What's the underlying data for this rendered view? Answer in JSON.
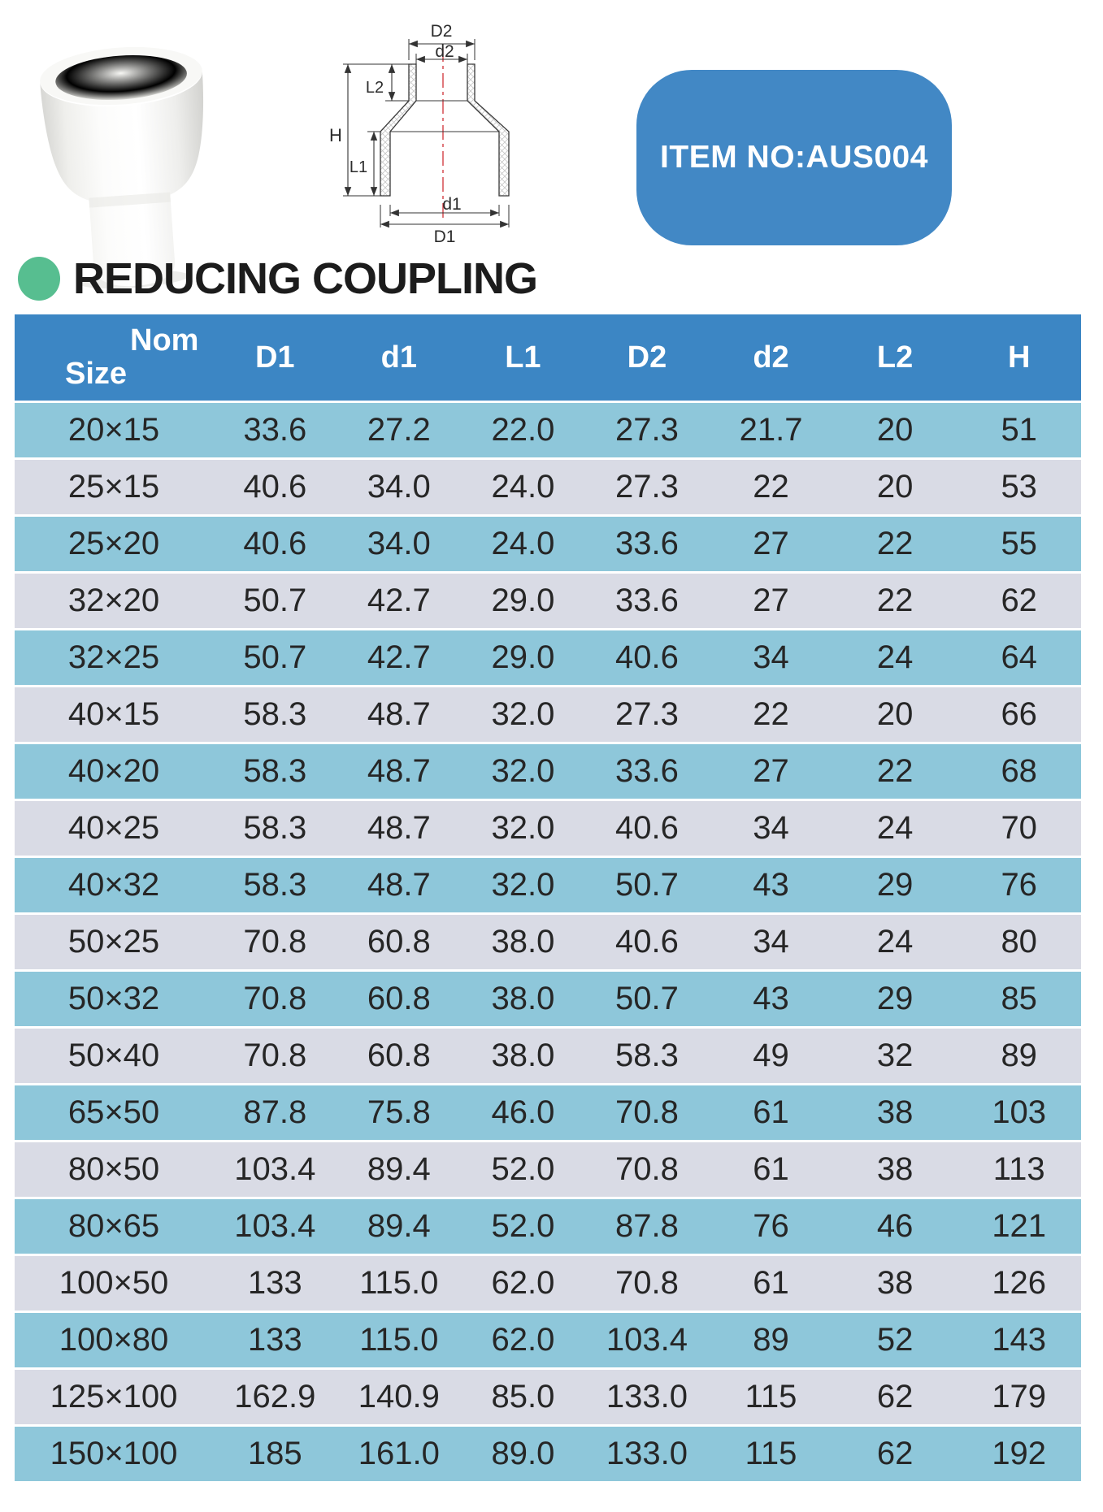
{
  "badge": {
    "label": "ITEM NO:AUS004"
  },
  "section": {
    "title": "REDUCING COUPLING"
  },
  "diagram": {
    "labels": {
      "D2": "D2",
      "d2": "d2",
      "L2": "L2",
      "H": "H",
      "L1": "L1",
      "d1": "d1",
      "D1": "D1"
    }
  },
  "table": {
    "headers": [
      "Nom\nSize",
      "D1",
      "d1",
      "L1",
      "D2",
      "d2",
      "L2",
      "H"
    ],
    "rows": [
      [
        "20×15",
        "33.6",
        "27.2",
        "22.0",
        "27.3",
        "21.7",
        "20",
        "51"
      ],
      [
        "25×15",
        "40.6",
        "34.0",
        "24.0",
        "27.3",
        "22",
        "20",
        "53"
      ],
      [
        "25×20",
        "40.6",
        "34.0",
        "24.0",
        "33.6",
        "27",
        "22",
        "55"
      ],
      [
        "32×20",
        "50.7",
        "42.7",
        "29.0",
        "33.6",
        "27",
        "22",
        "62"
      ],
      [
        "32×25",
        "50.7",
        "42.7",
        "29.0",
        "40.6",
        "34",
        "24",
        "64"
      ],
      [
        "40×15",
        "58.3",
        "48.7",
        "32.0",
        "27.3",
        "22",
        "20",
        "66"
      ],
      [
        "40×20",
        "58.3",
        "48.7",
        "32.0",
        "33.6",
        "27",
        "22",
        "68"
      ],
      [
        "40×25",
        "58.3",
        "48.7",
        "32.0",
        "40.6",
        "34",
        "24",
        "70"
      ],
      [
        "40×32",
        "58.3",
        "48.7",
        "32.0",
        "50.7",
        "43",
        "29",
        "76"
      ],
      [
        "50×25",
        "70.8",
        "60.8",
        "38.0",
        "40.6",
        "34",
        "24",
        "80"
      ],
      [
        "50×32",
        "70.8",
        "60.8",
        "38.0",
        "50.7",
        "43",
        "29",
        "85"
      ],
      [
        "50×40",
        "70.8",
        "60.8",
        "38.0",
        "58.3",
        "49",
        "32",
        "89"
      ],
      [
        "65×50",
        "87.8",
        "75.8",
        "46.0",
        "70.8",
        "61",
        "38",
        "103"
      ],
      [
        "80×50",
        "103.4",
        "89.4",
        "52.0",
        "70.8",
        "61",
        "38",
        "113"
      ],
      [
        "80×65",
        "103.4",
        "89.4",
        "52.0",
        "87.8",
        "76",
        "46",
        "121"
      ],
      [
        "100×50",
        "133",
        "115.0",
        "62.0",
        "70.8",
        "61",
        "38",
        "126"
      ],
      [
        "100×80",
        "133",
        "115.0",
        "62.0",
        "103.4",
        "89",
        "52",
        "143"
      ],
      [
        "125×100",
        "162.9",
        "140.9",
        "85.0",
        "133.0",
        "115",
        "62",
        "179"
      ],
      [
        "150×100",
        "185",
        "161.0",
        "89.0",
        "133.0",
        "115",
        "62",
        "192"
      ]
    ]
  },
  "colors": {
    "header_blue": "#3c86c4",
    "row_blue": "#8ec7da",
    "row_lavender": "#d9dbe5",
    "badge_blue": "#4288c5",
    "bullet_green": "#57be90",
    "text_dark": "#262626"
  }
}
